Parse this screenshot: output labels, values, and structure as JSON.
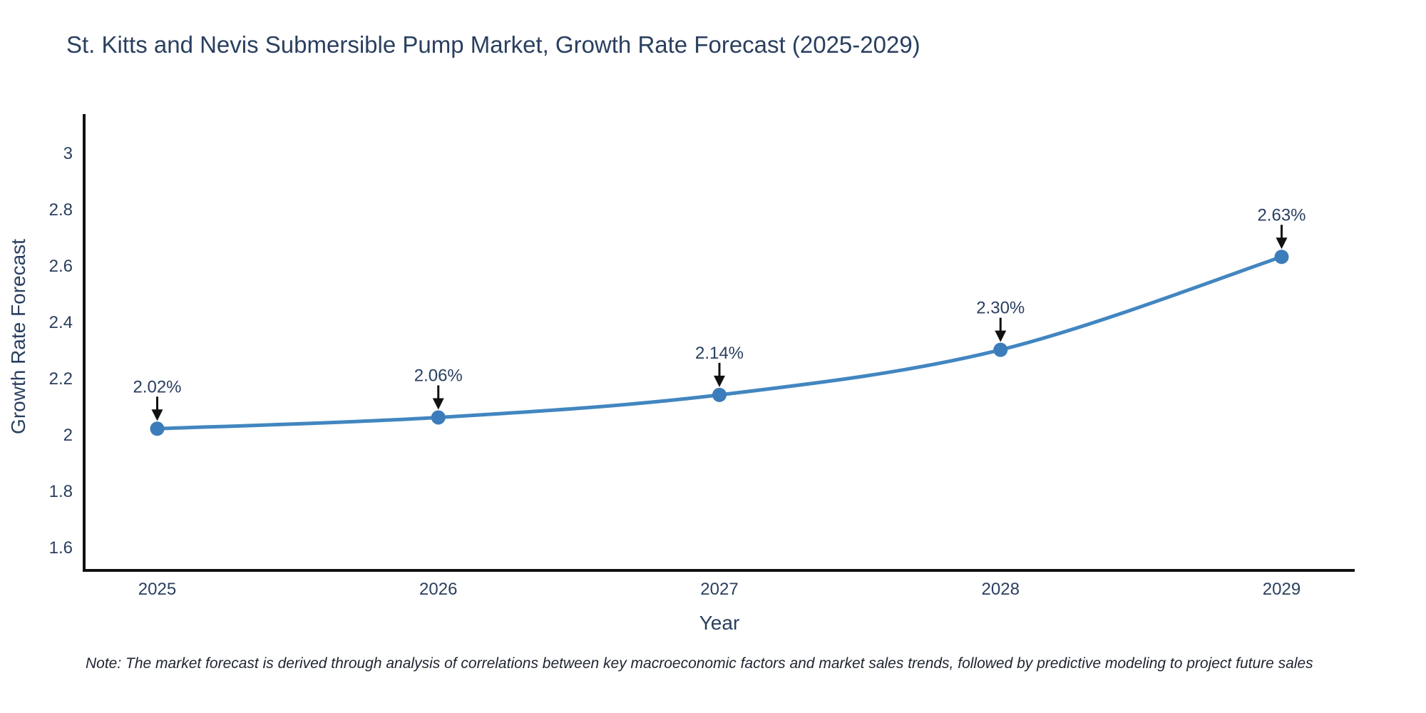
{
  "note": "Note: The market forecast is derived through analysis of correlations between key macroeconomic factors and market sales trends, followed by predictive modeling to project future sales",
  "chart_data": {
    "type": "line",
    "title": "St. Kitts and Nevis Submersible Pump Market, Growth Rate Forecast (2025-2029)",
    "xlabel": "Year",
    "ylabel": "Growth Rate Forecast",
    "x": [
      2025,
      2026,
      2027,
      2028,
      2029
    ],
    "values": [
      2.02,
      2.06,
      2.14,
      2.3,
      2.63
    ],
    "point_labels": [
      "2.02%",
      "2.06%",
      "2.14%",
      "2.30%",
      "2.63%"
    ],
    "xtick_labels": [
      "2025",
      "2026",
      "2027",
      "2028",
      "2029"
    ],
    "yticks": [
      1.6,
      1.8,
      2.0,
      2.2,
      2.4,
      2.6,
      2.8,
      3.0
    ],
    "ytick_labels": [
      "1.6",
      "1.8",
      "2",
      "2.2",
      "2.4",
      "2.6",
      "2.8",
      "3"
    ],
    "xlim": [
      2024.74,
      2029.26
    ],
    "ylim": [
      1.517,
      3.137
    ],
    "grid": false,
    "legend": "none",
    "line_shape": "spline",
    "colors": {
      "line": "#4286c0",
      "marker": "#3c7cba",
      "axis": "#111111",
      "tick_label": "#2a3f5f",
      "title": "#2a3f5f",
      "annotation_text": "#2a3f5f",
      "annotation_arrow": "#111111",
      "background": "#ffffff"
    }
  }
}
